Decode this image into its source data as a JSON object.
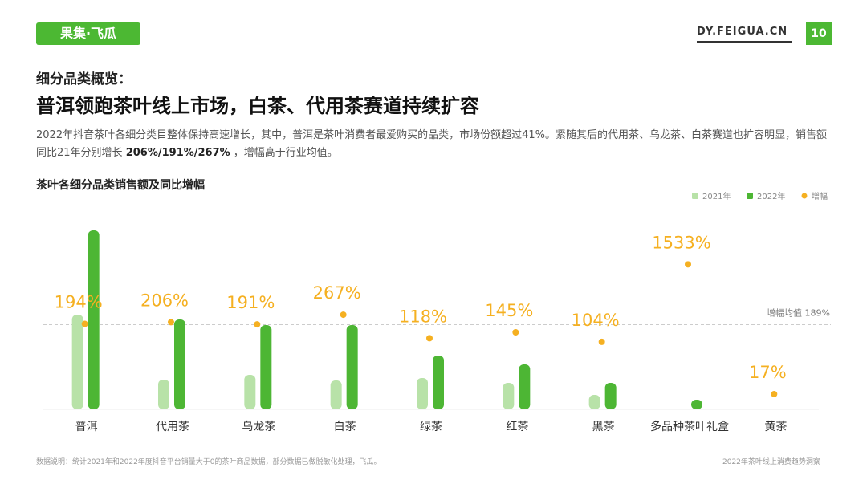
{
  "header": {
    "logo": "果集·飞瓜",
    "site": "DY.FEIGUA.CN",
    "page": "10",
    "kicker": "细分品类概览：",
    "title": "普洱领跑茶叶线上市场，白茶、代用茶赛道持续扩容"
  },
  "description": {
    "text": "2022年抖音茶叶各细分类目整体保持高速增长，其中，普洱是茶叶消费者最爱购买的品类，市场份额超过41%。紧随其后的代用茶、乌龙茶、白茶赛道也扩容明显，销售额同比21年分别增长 ",
    "bold": "206%/191%/267%",
    "tail": " ，增幅高于行业均值。"
  },
  "chart_data": {
    "type": "bar",
    "title": "茶叶各细分品类销售额及同比增幅",
    "categories": [
      "普洱",
      "代用茶",
      "乌龙茶",
      "白茶",
      "绿茶",
      "红茶",
      "黑茶",
      "多品种茶叶礼盒",
      "黄茶"
    ],
    "series": [
      {
        "name": "2021年",
        "color": "#b8e2a8",
        "values": [
          118,
          37,
          43,
          36,
          39,
          33,
          18,
          null,
          null
        ]
      },
      {
        "name": "2022年",
        "color": "#4db634",
        "values": [
          223,
          112,
          105,
          105,
          67,
          56,
          33,
          12,
          null
        ]
      },
      {
        "name": "增幅",
        "color": "#f5b021",
        "axis": "y2",
        "values": [
          194,
          206,
          191,
          267,
          118,
          145,
          104,
          1533,
          17
        ],
        "value_labels": [
          "194%",
          "206%",
          "191%",
          "267%",
          "118%",
          "145%",
          "104%",
          "1533%",
          "17%"
        ]
      }
    ],
    "ylim": [
      0,
      240
    ],
    "y2lim": [
      10,
      8000
    ],
    "y2scale": "log",
    "legend": "top-right",
    "average": {
      "value": 189,
      "label": "增幅均值 189%"
    },
    "footnote": "数据说明：统计2021年和2022年度抖音平台销量大于0的茶叶商品数据，部分数据已做脱敏化处理，飞瓜。",
    "source": "2022年茶叶线上消费趋势洞察"
  }
}
